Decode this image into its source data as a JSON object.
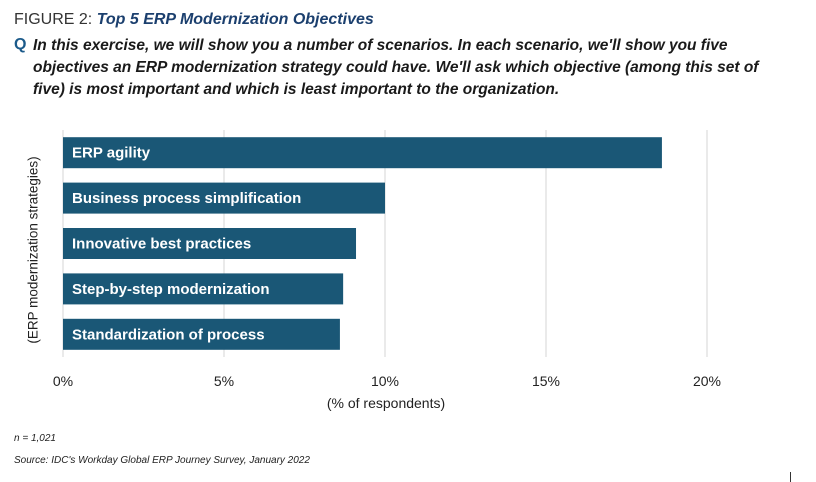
{
  "figure": {
    "prefix": "FIGURE 2: ",
    "title": "Top 5 ERP Modernization Objectives",
    "question_marker": "Q",
    "question": "In this exercise, we will show you a number of scenarios. In each scenario, we'll show you five objectives an ERP modernization strategy could have. We'll ask which objective (among this set of five) is most important and which is least important to the organization."
  },
  "chart_data": {
    "type": "bar",
    "orientation": "horizontal",
    "categories": [
      "ERP agility",
      "Business process simplification",
      "Innovative best practices",
      "Step-by-step modernization",
      "Standardization of process"
    ],
    "values": [
      18.6,
      10.0,
      9.1,
      8.7,
      8.6
    ],
    "xlabel": "(% of respondents)",
    "ylabel": "(ERP modernization strategies)",
    "xlim": [
      0,
      20
    ],
    "xticks": [
      "0%",
      "5%",
      "10%",
      "15%",
      "20%"
    ],
    "grid": true,
    "bar_color": "#1a5776"
  },
  "notes": {
    "n": "n = 1,021",
    "source": "Source: IDC's Workday Global ERP Journey Survey, January 2022"
  }
}
